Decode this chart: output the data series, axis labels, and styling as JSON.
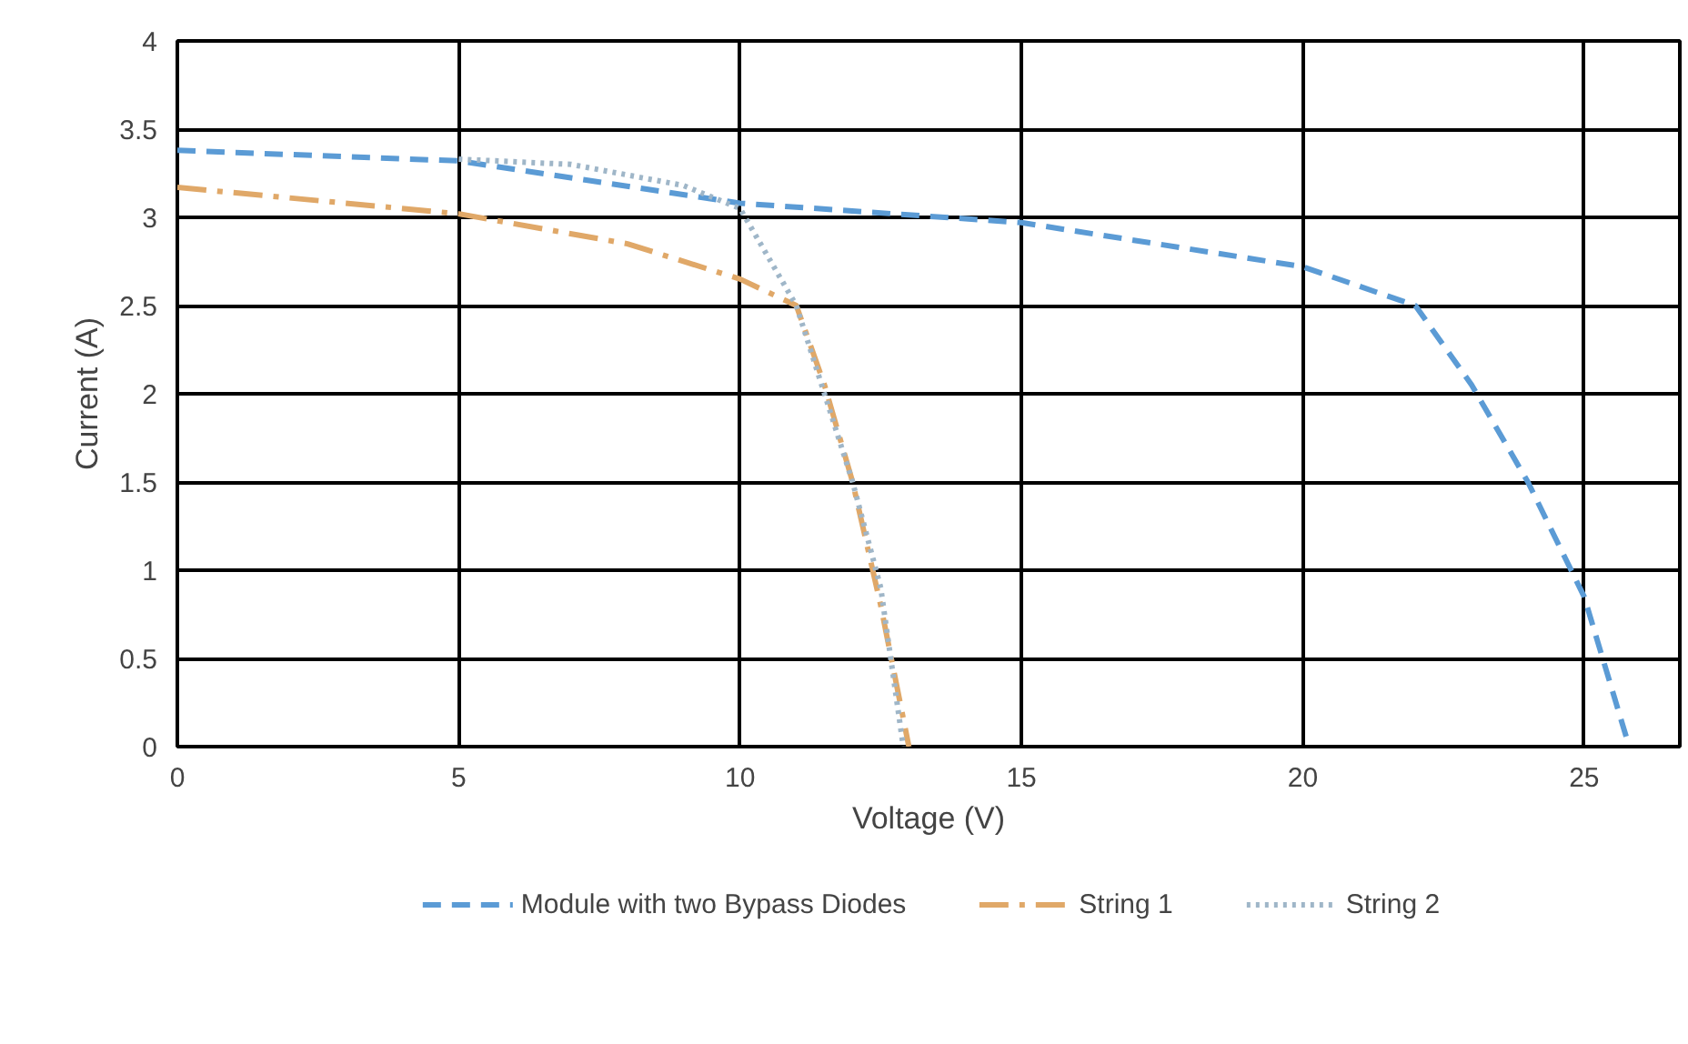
{
  "chart_data": {
    "type": "line",
    "xlabel": "Voltage (V)",
    "ylabel": "Current (A)",
    "xlim": [
      0,
      26.7
    ],
    "xticks": [
      0,
      5,
      10,
      15,
      20,
      25
    ],
    "ylim": [
      0,
      4
    ],
    "yticks": [
      0,
      0.5,
      1,
      1.5,
      2,
      2.5,
      3,
      3.5,
      4
    ],
    "grid": true,
    "legend": "bottom",
    "marker": "none",
    "series": [
      {
        "name": "Module with two Bypass Diodes",
        "color": "#5b9bd5",
        "line_style": "dashed",
        "x": [
          0,
          5,
          10,
          15,
          20,
          22,
          23,
          24,
          25,
          25.8
        ],
        "values": [
          3.38,
          3.32,
          3.08,
          2.97,
          2.72,
          2.5,
          2.05,
          1.5,
          0.85,
          0
        ]
      },
      {
        "name": "String 1",
        "color": "#e0a868",
        "line_style": "dashdot",
        "x": [
          0,
          5,
          8,
          10,
          11,
          11.5,
          12,
          12.5,
          13
        ],
        "values": [
          3.17,
          3.02,
          2.85,
          2.65,
          2.5,
          2.05,
          1.5,
          0.8,
          0
        ]
      },
      {
        "name": "String 2",
        "color": "#9fb6c8",
        "line_style": "dotted",
        "x": [
          5,
          7,
          9,
          10,
          11,
          12,
          12.5,
          12.9
        ],
        "values": [
          3.33,
          3.3,
          3.18,
          3.05,
          2.5,
          1.5,
          0.9,
          0
        ]
      }
    ]
  }
}
